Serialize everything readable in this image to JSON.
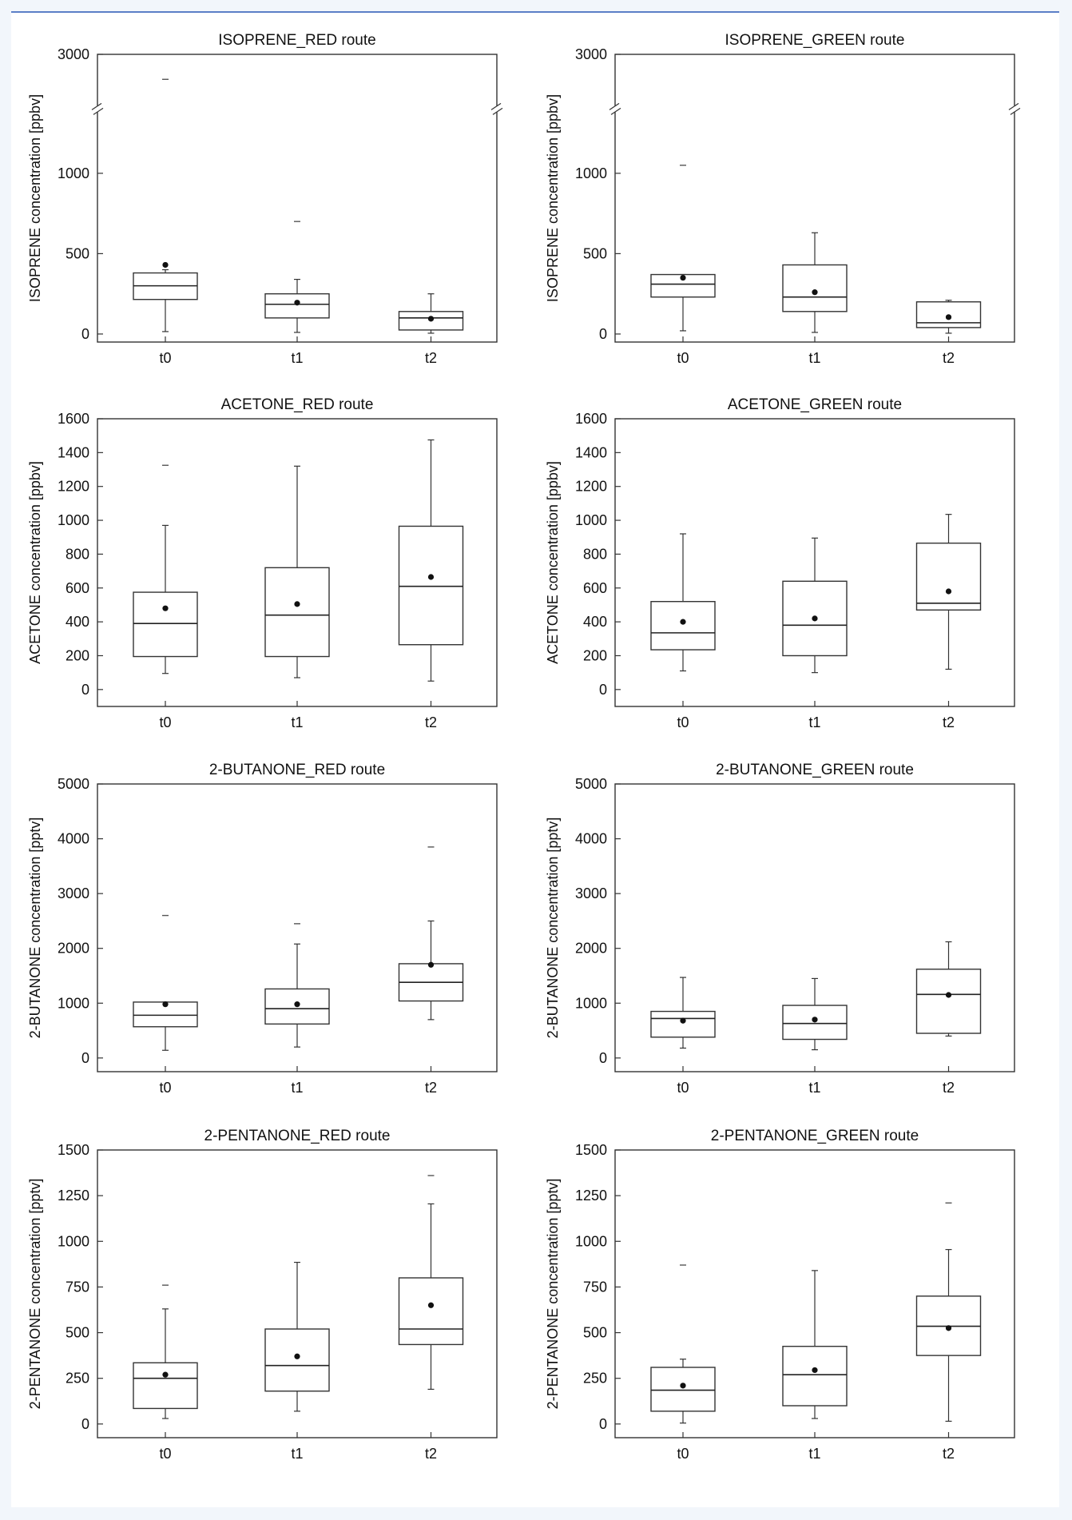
{
  "chart_data": [
    {
      "type": "box",
      "title": "ISOPRENE_RED route",
      "ylabel": "ISOPRENE concentration [ppbv]",
      "xlabel": "",
      "categories": [
        "t0",
        "t1",
        "t2"
      ],
      "y_segments": [
        {
          "range": [
            -50,
            1400
          ]
        },
        {
          "range": [
            2300,
            3000
          ]
        }
      ],
      "yticks": [
        0,
        500,
        1000,
        3000
      ],
      "boxes": [
        {
          "q1": 215,
          "median": 300,
          "q3": 380,
          "whisker_low": 15,
          "whisker_high": 400,
          "mean": 430,
          "outliers": [
            2680
          ]
        },
        {
          "q1": 100,
          "median": 185,
          "q3": 250,
          "whisker_low": 10,
          "whisker_high": 340,
          "mean": 195,
          "outliers": [
            700
          ]
        },
        {
          "q1": 25,
          "median": 100,
          "q3": 140,
          "whisker_low": 5,
          "whisker_high": 250,
          "mean": 95,
          "outliers": []
        }
      ]
    },
    {
      "type": "box",
      "title": "ISOPRENE_GREEN route",
      "ylabel": "ISOPRENE concentration [ppbv]",
      "xlabel": "",
      "categories": [
        "t0",
        "t1",
        "t2"
      ],
      "y_segments": [
        {
          "range": [
            -50,
            1400
          ]
        },
        {
          "range": [
            2300,
            3000
          ]
        }
      ],
      "yticks": [
        0,
        500,
        1000,
        3000
      ],
      "boxes": [
        {
          "q1": 230,
          "median": 310,
          "q3": 370,
          "whisker_low": 20,
          "whisker_high": 370,
          "mean": 350,
          "outliers": [
            1050
          ]
        },
        {
          "q1": 140,
          "median": 230,
          "q3": 430,
          "whisker_low": 10,
          "whisker_high": 630,
          "mean": 260,
          "outliers": []
        },
        {
          "q1": 40,
          "median": 70,
          "q3": 200,
          "whisker_low": 5,
          "whisker_high": 210,
          "mean": 105,
          "outliers": []
        }
      ]
    },
    {
      "type": "box",
      "title": "ACETONE_RED route",
      "ylabel": "ACETONE concentration [ppbv]",
      "xlabel": "",
      "categories": [
        "t0",
        "t1",
        "t2"
      ],
      "ylim": [
        -100,
        1600
      ],
      "yticks": [
        0,
        200,
        400,
        600,
        800,
        1000,
        1200,
        1400,
        1600
      ],
      "boxes": [
        {
          "q1": 195,
          "median": 390,
          "q3": 575,
          "whisker_low": 95,
          "whisker_high": 970,
          "mean": 480,
          "outliers": [
            1325
          ]
        },
        {
          "q1": 195,
          "median": 440,
          "q3": 720,
          "whisker_low": 70,
          "whisker_high": 1320,
          "mean": 505,
          "outliers": []
        },
        {
          "q1": 265,
          "median": 610,
          "q3": 965,
          "whisker_low": 50,
          "whisker_high": 1475,
          "mean": 665,
          "outliers": []
        }
      ]
    },
    {
      "type": "box",
      "title": "ACETONE_GREEN route",
      "ylabel": "ACETONE concentration [ppbv]",
      "xlabel": "",
      "categories": [
        "t0",
        "t1",
        "t2"
      ],
      "ylim": [
        -100,
        1600
      ],
      "yticks": [
        0,
        200,
        400,
        600,
        800,
        1000,
        1200,
        1400,
        1600
      ],
      "boxes": [
        {
          "q1": 235,
          "median": 335,
          "q3": 520,
          "whisker_low": 110,
          "whisker_high": 920,
          "mean": 400,
          "outliers": []
        },
        {
          "q1": 200,
          "median": 380,
          "q3": 640,
          "whisker_low": 100,
          "whisker_high": 895,
          "mean": 420,
          "outliers": []
        },
        {
          "q1": 470,
          "median": 510,
          "q3": 865,
          "whisker_low": 120,
          "whisker_high": 1035,
          "mean": 580,
          "outliers": []
        }
      ]
    },
    {
      "type": "box",
      "title": "2-BUTANONE_RED route",
      "ylabel": "2-BUTANONE concentration [pptv]",
      "xlabel": "",
      "categories": [
        "t0",
        "t1",
        "t2"
      ],
      "ylim": [
        -250,
        5000
      ],
      "yticks": [
        0,
        1000,
        2000,
        3000,
        4000,
        5000
      ],
      "boxes": [
        {
          "q1": 570,
          "median": 780,
          "q3": 1020,
          "whisker_low": 140,
          "whisker_high": 1020,
          "mean": 980,
          "outliers": [
            2600
          ]
        },
        {
          "q1": 620,
          "median": 900,
          "q3": 1260,
          "whisker_low": 200,
          "whisker_high": 2080,
          "mean": 980,
          "outliers": [
            2450
          ]
        },
        {
          "q1": 1040,
          "median": 1380,
          "q3": 1720,
          "whisker_low": 700,
          "whisker_high": 2500,
          "mean": 1700,
          "outliers": [
            3850
          ]
        }
      ]
    },
    {
      "type": "box",
      "title": "2-BUTANONE_GREEN route",
      "ylabel": "2-BUTANONE concentration [pptv]",
      "xlabel": "",
      "categories": [
        "t0",
        "t1",
        "t2"
      ],
      "ylim": [
        -250,
        5000
      ],
      "yticks": [
        0,
        1000,
        2000,
        3000,
        4000,
        5000
      ],
      "boxes": [
        {
          "q1": 380,
          "median": 720,
          "q3": 850,
          "whisker_low": 180,
          "whisker_high": 1470,
          "mean": 680,
          "outliers": []
        },
        {
          "q1": 340,
          "median": 630,
          "q3": 960,
          "whisker_low": 150,
          "whisker_high": 1450,
          "mean": 700,
          "outliers": []
        },
        {
          "q1": 450,
          "median": 1160,
          "q3": 1620,
          "whisker_low": 400,
          "whisker_high": 2120,
          "mean": 1150,
          "outliers": []
        }
      ]
    },
    {
      "type": "box",
      "title": "2-PENTANONE_RED route",
      "ylabel": "2-PENTANONE concentration [pptv]",
      "xlabel": "",
      "categories": [
        "t0",
        "t1",
        "t2"
      ],
      "ylim": [
        -75,
        1500
      ],
      "yticks": [
        0,
        250,
        500,
        750,
        1000,
        1250,
        1500
      ],
      "boxes": [
        {
          "q1": 85,
          "median": 250,
          "q3": 335,
          "whisker_low": 30,
          "whisker_high": 630,
          "mean": 270,
          "outliers": [
            760
          ]
        },
        {
          "q1": 180,
          "median": 320,
          "q3": 520,
          "whisker_low": 70,
          "whisker_high": 885,
          "mean": 370,
          "outliers": []
        },
        {
          "q1": 435,
          "median": 520,
          "q3": 800,
          "whisker_low": 190,
          "whisker_high": 1205,
          "mean": 650,
          "outliers": [
            1360
          ]
        }
      ]
    },
    {
      "type": "box",
      "title": "2-PENTANONE_GREEN route",
      "ylabel": "2-PENTANONE concentration [pptv]",
      "xlabel": "",
      "categories": [
        "t0",
        "t1",
        "t2"
      ],
      "ylim": [
        -75,
        1500
      ],
      "yticks": [
        0,
        250,
        500,
        750,
        1000,
        1250,
        1500
      ],
      "boxes": [
        {
          "q1": 70,
          "median": 185,
          "q3": 310,
          "whisker_low": 5,
          "whisker_high": 355,
          "mean": 210,
          "outliers": [
            870
          ]
        },
        {
          "q1": 100,
          "median": 270,
          "q3": 425,
          "whisker_low": 30,
          "whisker_high": 840,
          "mean": 295,
          "outliers": []
        },
        {
          "q1": 375,
          "median": 535,
          "q3": 700,
          "whisker_low": 15,
          "whisker_high": 955,
          "mean": 525,
          "outliers": [
            1210
          ]
        }
      ]
    }
  ]
}
